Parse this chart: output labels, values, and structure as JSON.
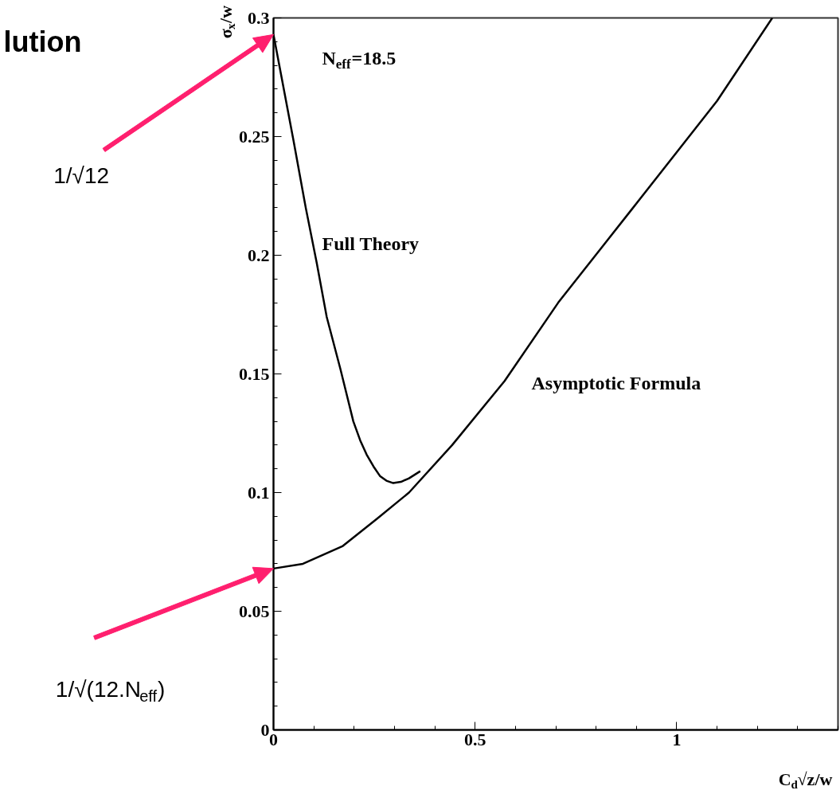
{
  "chart_data": {
    "type": "line",
    "title": "lution",
    "xlabel": "C$_{d}$√z/w",
    "ylabel": "σ$_{x}$/w",
    "xlim": [
      0,
      1.4
    ],
    "ylim": [
      0,
      0.3
    ],
    "xticks": [
      0,
      0.5,
      1
    ],
    "yticks": [
      0,
      0.05,
      0.1,
      0.15,
      0.2,
      0.25,
      0.3
    ],
    "grid": false,
    "series": [
      {
        "color": "#000000",
        "x": [
          0,
          0.02,
          0.05,
          0.08,
          0.107,
          0.132,
          0.166,
          0.198,
          0.215,
          0.231,
          0.248,
          0.264,
          0.28,
          0.297,
          0.316,
          0.336,
          0.364
        ],
        "values": [
          0.293,
          0.275,
          0.248,
          0.22,
          0.197,
          0.174,
          0.152,
          0.13,
          0.122,
          0.116,
          0.111,
          0.107,
          0.105,
          0.104,
          0.1045,
          0.106,
          0.109
        ]
      },
      {
        "color": "#000000",
        "x": [
          0,
          0.073,
          0.172,
          0.257,
          0.336,
          0.443,
          0.573,
          0.706,
          0.887,
          1.1,
          1.237
        ],
        "values": [
          0.068,
          0.07,
          0.0775,
          0.089,
          0.1,
          0.12,
          0.147,
          0.18,
          0.219,
          0.265,
          0.3
        ]
      }
    ],
    "annotations": [
      "N$_{eff}$=18.5",
      "Full Theory",
      "Asymptotic Formula",
      "1/√12",
      "1/√(12.N$_{eff}$)"
    ]
  }
}
